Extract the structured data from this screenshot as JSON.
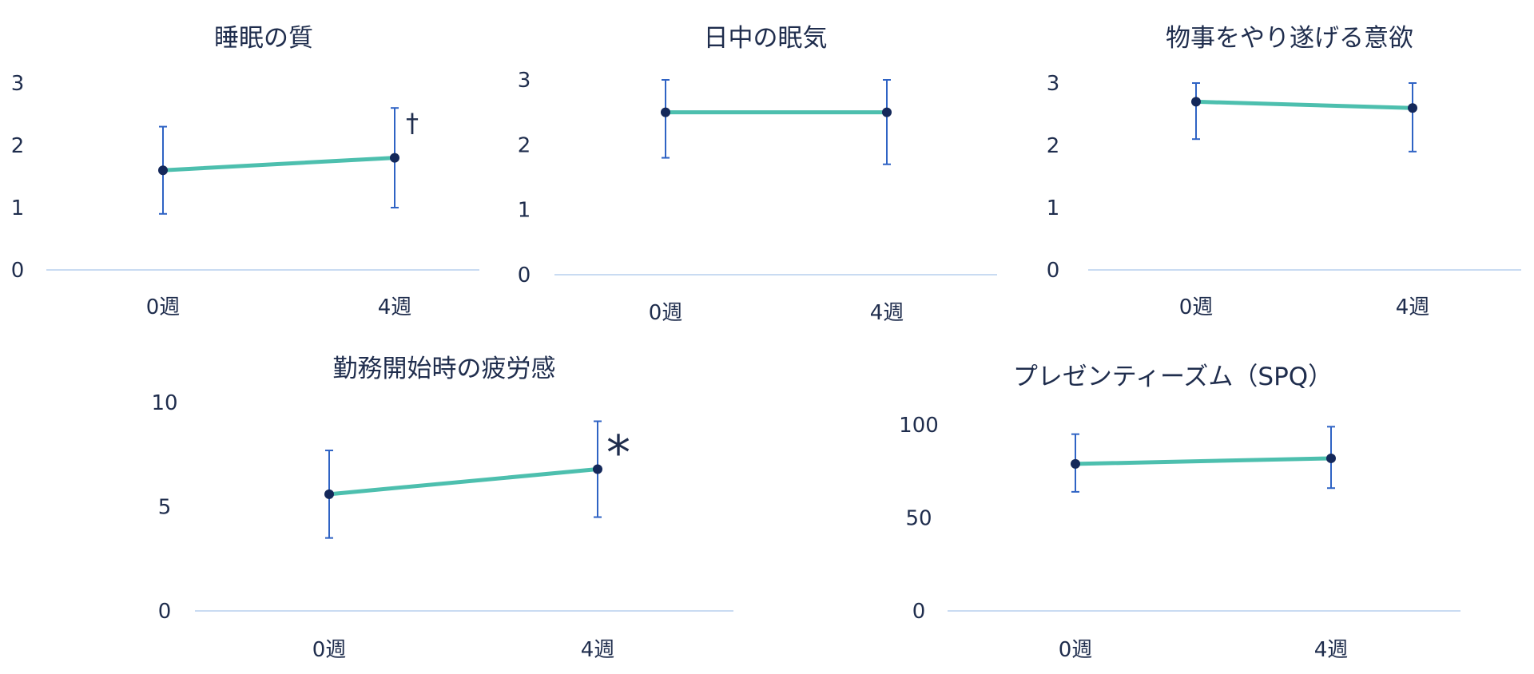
{
  "colors": {
    "line": "#4dbfae",
    "error_bar": "#2f63c4",
    "point": "#14285a",
    "axis": "#c9dbf2",
    "text": "#1f2d4d"
  },
  "chart_data": [
    {
      "type": "line",
      "title": "睡眠の質",
      "categories": [
        "0週",
        "4週"
      ],
      "values": [
        1.6,
        1.8
      ],
      "error_low": [
        0.9,
        1.0
      ],
      "error_high": [
        2.3,
        2.6
      ],
      "yticks": [
        "0",
        "1",
        "2",
        "3"
      ],
      "ylim": [
        0,
        3
      ],
      "annotation": "†"
    },
    {
      "type": "line",
      "title": "日中の眠気",
      "categories": [
        "0週",
        "4週"
      ],
      "values": [
        2.5,
        2.5
      ],
      "error_low": [
        1.8,
        1.7
      ],
      "error_high": [
        3.0,
        3.0
      ],
      "yticks": [
        "0",
        "1",
        "2",
        "3"
      ],
      "ylim": [
        0,
        3
      ],
      "annotation": ""
    },
    {
      "type": "line",
      "title": "物事をやり遂げる意欲",
      "categories": [
        "0週",
        "4週"
      ],
      "values": [
        2.7,
        2.6
      ],
      "error_low": [
        2.1,
        1.9
      ],
      "error_high": [
        3.0,
        3.0
      ],
      "yticks": [
        "0",
        "1",
        "2",
        "3"
      ],
      "ylim": [
        0,
        3
      ],
      "annotation": ""
    },
    {
      "type": "line",
      "title": "勤務開始時の疲労感",
      "categories": [
        "0週",
        "4週"
      ],
      "values": [
        5.6,
        6.8
      ],
      "error_low": [
        3.5,
        4.5
      ],
      "error_high": [
        7.7,
        9.1
      ],
      "yticks": [
        "0",
        "5",
        "10"
      ],
      "ylim": [
        0,
        10
      ],
      "annotation": "*"
    },
    {
      "type": "line",
      "title": "プレゼンティーズム（SPQ）",
      "categories": [
        "0週",
        "4週"
      ],
      "values": [
        79,
        82
      ],
      "error_low": [
        64,
        66
      ],
      "error_high": [
        95,
        99
      ],
      "yticks": [
        "0",
        "50",
        "100"
      ],
      "ylim": [
        0,
        100
      ],
      "annotation": ""
    }
  ]
}
